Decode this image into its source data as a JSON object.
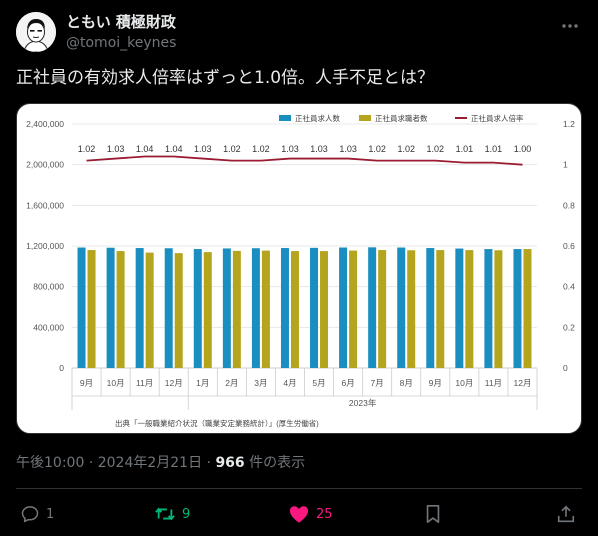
{
  "author": {
    "display_name": "ともい 積極財政",
    "handle": "@tomoi_keynes"
  },
  "tweet": {
    "text": "正社員の有効求人倍率はずっと1.0倍。人手不足とは？"
  },
  "meta": {
    "time": "午後10:00",
    "date": "2024年2月21日",
    "views_count": "966",
    "views_label": "件の表示"
  },
  "actions": {
    "reply_count": "1",
    "retweet_count": "9",
    "like_count": "25"
  },
  "colors": {
    "job_offers": "#1a8ec0",
    "job_seekers": "#b5a51e",
    "ratio_line": "#9b1b30",
    "like": "#f91880",
    "retweet": "#00ba7c"
  },
  "chart_data": {
    "type": "bar",
    "categories": [
      "9月",
      "10月",
      "11月",
      "12月",
      "1月",
      "2月",
      "3月",
      "4月",
      "5月",
      "6月",
      "7月",
      "8月",
      "9月",
      "10月",
      "11月",
      "12月"
    ],
    "year_label": "2023年",
    "series": [
      {
        "name": "正社員求人数",
        "type": "bar",
        "axis": "left",
        "values": [
          1185000,
          1183000,
          1180000,
          1178000,
          1170000,
          1176000,
          1178000,
          1180000,
          1182000,
          1185000,
          1187000,
          1185000,
          1180000,
          1175000,
          1170000,
          1170000
        ]
      },
      {
        "name": "正社員求職者数",
        "type": "bar",
        "axis": "left",
        "values": [
          1160000,
          1150000,
          1135000,
          1130000,
          1140000,
          1152000,
          1155000,
          1150000,
          1150000,
          1155000,
          1160000,
          1158000,
          1160000,
          1160000,
          1158000,
          1170000
        ]
      },
      {
        "name": "正社員求人倍率",
        "type": "line",
        "axis": "right",
        "values": [
          1.02,
          1.03,
          1.04,
          1.04,
          1.03,
          1.02,
          1.02,
          1.03,
          1.03,
          1.03,
          1.02,
          1.02,
          1.02,
          1.01,
          1.01,
          1.0
        ],
        "labels": [
          "1.02",
          "1.03",
          "1.04",
          "1.04",
          "1.03",
          "1.02",
          "1.02",
          "1.03",
          "1.03",
          "1.03",
          "1.02",
          "1.02",
          "1.02",
          "1.01",
          "1.01",
          "1.00"
        ]
      }
    ],
    "y_left_ticks": [
      "0",
      "400,000",
      "800,000",
      "1,200,000",
      "1,600,000",
      "2,000,000",
      "2,400,000"
    ],
    "y_left_lim": [
      0,
      2400000
    ],
    "y_right_ticks": [
      "0",
      "0.2",
      "0.4",
      "0.6",
      "0.8",
      "1",
      "1.2"
    ],
    "y_right_lim": [
      0,
      1.2
    ],
    "legend_position": "top-right",
    "source": "出典「一般職業紹介状況（職業安定業務統計）」(厚生労働省)"
  }
}
